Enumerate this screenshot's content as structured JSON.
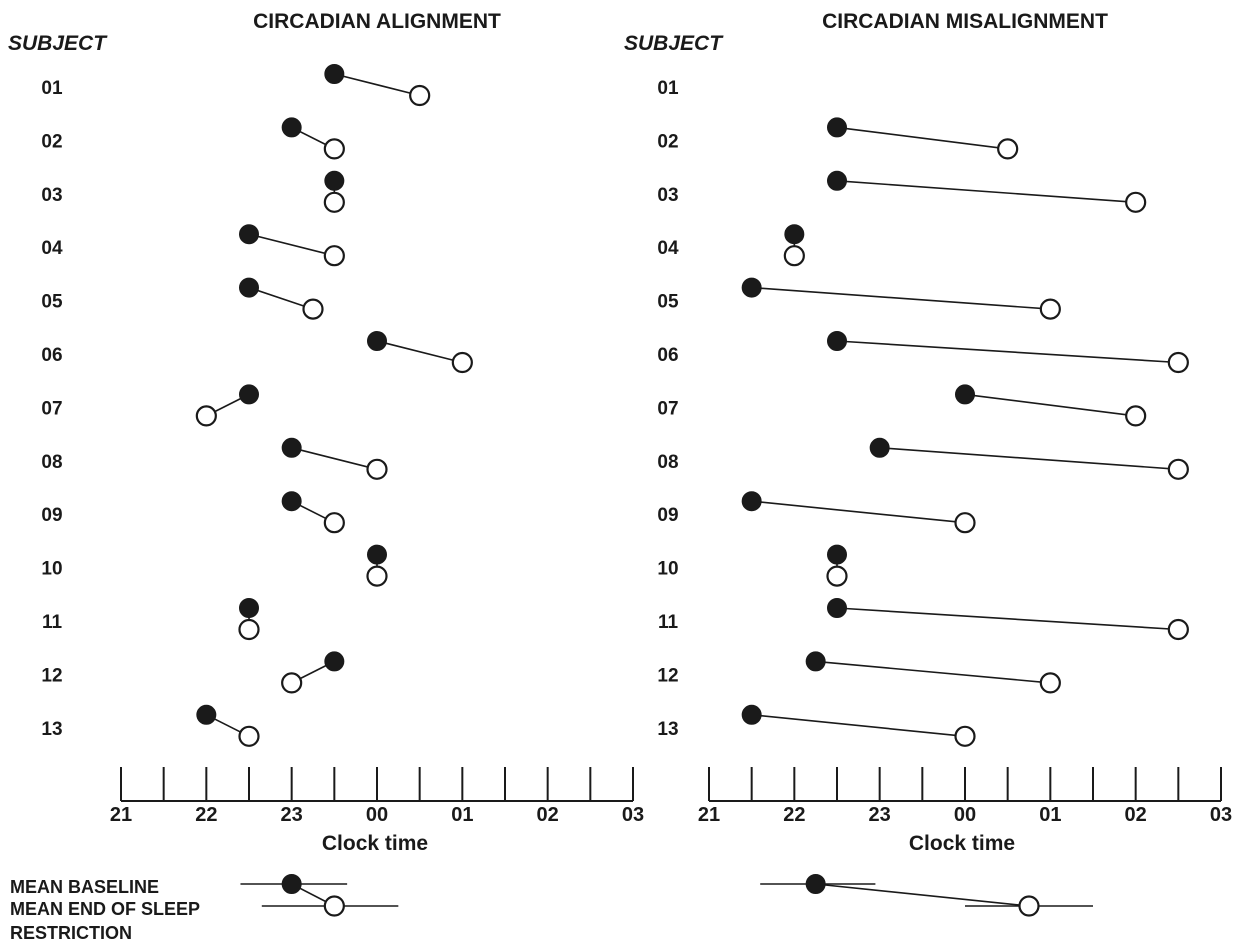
{
  "chart_data": [
    {
      "type": "scatter",
      "title": "CIRCADIAN ALIGNMENT",
      "subject_header": "SUBJECT",
      "xlabel": "Clock time",
      "xticks": [
        "21",
        "22",
        "23",
        "00",
        "01",
        "02",
        "03"
      ],
      "xlim": [
        21,
        27
      ],
      "series": [
        {
          "name": "MEAN BASELINE",
          "marker": "filled"
        },
        {
          "name": "MEAN END OF SLEEP RESTRICTION",
          "marker": "open"
        }
      ],
      "subjects": [
        {
          "id": "01",
          "baseline": 23.5,
          "end": 24.5
        },
        {
          "id": "02",
          "baseline": 23.0,
          "end": 23.5
        },
        {
          "id": "03",
          "baseline": 23.5,
          "end": 23.5
        },
        {
          "id": "04",
          "baseline": 22.5,
          "end": 23.5
        },
        {
          "id": "05",
          "baseline": 22.5,
          "end": 23.25
        },
        {
          "id": "06",
          "baseline": 24.0,
          "end": 25.0
        },
        {
          "id": "07",
          "baseline": 22.5,
          "end": 22.0
        },
        {
          "id": "08",
          "baseline": 23.0,
          "end": 24.0
        },
        {
          "id": "09",
          "baseline": 23.0,
          "end": 23.5
        },
        {
          "id": "10",
          "baseline": 24.0,
          "end": 24.0
        },
        {
          "id": "11",
          "baseline": 22.5,
          "end": 22.5
        },
        {
          "id": "12",
          "baseline": 23.5,
          "end": 23.0
        },
        {
          "id": "13",
          "baseline": 22.0,
          "end": 22.5
        }
      ],
      "mean": {
        "baseline": 23.0,
        "baseline_err": [
          22.4,
          23.65
        ],
        "end": 23.5,
        "end_err": [
          22.65,
          24.25
        ]
      }
    },
    {
      "type": "scatter",
      "title": "CIRCADIAN MISALIGNMENT",
      "subject_header": "SUBJECT",
      "xlabel": "Clock time",
      "xticks": [
        "21",
        "22",
        "23",
        "00",
        "01",
        "02",
        "03"
      ],
      "xlim": [
        21,
        27
      ],
      "series": [
        {
          "name": "MEAN BASELINE",
          "marker": "filled"
        },
        {
          "name": "MEAN END OF SLEEP RESTRICTION",
          "marker": "open"
        }
      ],
      "subjects": [
        {
          "id": "01",
          "baseline": null,
          "end": null
        },
        {
          "id": "02",
          "baseline": 22.5,
          "end": 24.5
        },
        {
          "id": "03",
          "baseline": 22.5,
          "end": 26.0
        },
        {
          "id": "04",
          "baseline": 22.0,
          "end": 22.0
        },
        {
          "id": "05",
          "baseline": 21.5,
          "end": 25.0
        },
        {
          "id": "06",
          "baseline": 22.5,
          "end": 26.5
        },
        {
          "id": "07",
          "baseline": 24.0,
          "end": 26.0
        },
        {
          "id": "08",
          "baseline": 23.0,
          "end": 26.5
        },
        {
          "id": "09",
          "baseline": 21.5,
          "end": 24.0
        },
        {
          "id": "10",
          "baseline": 22.5,
          "end": 22.5
        },
        {
          "id": "11",
          "baseline": 22.5,
          "end": 26.5
        },
        {
          "id": "12",
          "baseline": 22.25,
          "end": 25.0
        },
        {
          "id": "13",
          "baseline": 21.5,
          "end": 24.0
        }
      ],
      "mean": {
        "baseline": 22.25,
        "baseline_err": [
          21.6,
          22.95
        ],
        "end": 24.75,
        "end_err": [
          24.0,
          25.5
        ]
      }
    }
  ],
  "legend": {
    "baseline_label": "MEAN BASELINE",
    "end_label_line1": "MEAN END OF SLEEP",
    "end_label_line2": "RESTRICTION"
  },
  "colors": {
    "ink": "#1a1a1a",
    "background": "#ffffff"
  }
}
